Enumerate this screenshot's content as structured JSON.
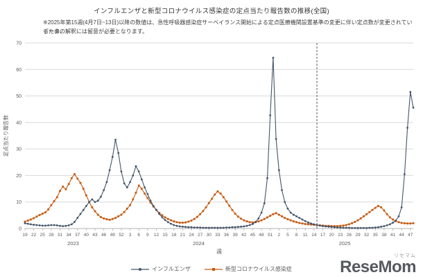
{
  "note": {
    "line1": "※2025年第15週(4月7日~13日)以降の数値は、急性呼吸器感染症サーベイランス開始による定点医療機関設置基準の変更に伴い定点数が変更されているため、",
    "line2": "データの解釈には留意が必要となります。"
  },
  "watermark": {
    "brand": "ReseMom",
    "kana": "リセマム"
  },
  "chart_data": {
    "type": "line",
    "title": "インフルエンザと新型コロナウイルス感染症の定点当たり報告数の推移(全国)",
    "ylabel": "定点当たり報告数",
    "xlabel": "週",
    "ylim": [
      0,
      70
    ],
    "y_ticks": [
      0,
      10,
      20,
      30,
      40,
      50,
      60,
      70
    ],
    "x_tick_every": 3,
    "grid": "horizontal",
    "legend_position": "bottom",
    "vline_index": 100,
    "vline_note": "2025年第15週",
    "categories": [
      19,
      20,
      21,
      22,
      23,
      24,
      25,
      26,
      27,
      28,
      29,
      30,
      31,
      32,
      33,
      34,
      35,
      36,
      37,
      38,
      39,
      40,
      41,
      42,
      43,
      44,
      45,
      46,
      47,
      48,
      49,
      50,
      51,
      52,
      1,
      2,
      3,
      4,
      5,
      6,
      7,
      8,
      9,
      10,
      11,
      12,
      13,
      14,
      15,
      16,
      17,
      18,
      19,
      20,
      21,
      22,
      23,
      24,
      25,
      26,
      27,
      28,
      29,
      30,
      31,
      32,
      33,
      34,
      35,
      36,
      37,
      38,
      39,
      40,
      41,
      42,
      43,
      44,
      45,
      46,
      47,
      48,
      49,
      50,
      51,
      52,
      1,
      2,
      3,
      4,
      5,
      6,
      7,
      8,
      9,
      10,
      11,
      12,
      13,
      14,
      15,
      16,
      17,
      18,
      19,
      20,
      21,
      22,
      23,
      24,
      25,
      26,
      27,
      28,
      29,
      30,
      31,
      32,
      33,
      34,
      35,
      36,
      37,
      38,
      39,
      40,
      41,
      42,
      43,
      44,
      45,
      46,
      47,
      48
    ],
    "year_groups": [
      {
        "label": "2023",
        "start": 0,
        "end": 33
      },
      {
        "label": "2024",
        "start": 34,
        "end": 85
      },
      {
        "label": "2025",
        "start": 86,
        "end": 133
      }
    ],
    "series": [
      {
        "name": "インフルエンザ",
        "color": "#44546A",
        "marker": "circle",
        "values": [
          2.0,
          1.8,
          1.6,
          1.4,
          1.3,
          1.2,
          1.1,
          1.1,
          1.2,
          1.3,
          1.3,
          1.2,
          1.0,
          0.9,
          1.0,
          1.2,
          1.6,
          2.5,
          4.0,
          5.5,
          7.0,
          8.5,
          10.0,
          11.0,
          10.0,
          10.5,
          12.0,
          14.5,
          17.5,
          22.0,
          27.0,
          33.5,
          28.5,
          21.5,
          17.0,
          15.5,
          17.5,
          20.0,
          23.5,
          21.5,
          18.5,
          15.5,
          13.0,
          10.5,
          8.5,
          7.0,
          5.5,
          4.2,
          3.2,
          2.4,
          1.8,
          1.3,
          1.0,
          0.8,
          0.7,
          0.6,
          0.5,
          0.5,
          0.4,
          0.4,
          0.4,
          0.3,
          0.3,
          0.3,
          0.3,
          0.3,
          0.3,
          0.3,
          0.3,
          0.4,
          0.4,
          0.5,
          0.5,
          0.6,
          0.7,
          0.8,
          1.0,
          1.3,
          1.7,
          2.5,
          3.8,
          6.0,
          9.5,
          19.0,
          42.7,
          64.4,
          33.8,
          22.0,
          14.5,
          10.0,
          7.5,
          6.0,
          5.2,
          4.6,
          4.0,
          3.4,
          2.8,
          2.3,
          1.9,
          1.6,
          1.3,
          1.1,
          0.9,
          0.8,
          0.7,
          0.6,
          0.5,
          0.4,
          0.4,
          0.3,
          0.3,
          0.3,
          0.2,
          0.2,
          0.2,
          0.2,
          0.2,
          0.2,
          0.3,
          0.3,
          0.4,
          0.5,
          0.7,
          0.9,
          1.2,
          1.6,
          2.2,
          3.0,
          4.6,
          8.0,
          20.5,
          38.0,
          51.5,
          45.6
        ]
      },
      {
        "name": "新型コロナウイルス感染症",
        "color": "#C55A11",
        "marker": "square",
        "values": [
          2.6,
          3.0,
          3.4,
          3.9,
          4.5,
          5.1,
          5.6,
          6.1,
          7.2,
          8.8,
          10.3,
          11.8,
          14.2,
          15.8,
          14.8,
          16.8,
          19.0,
          20.5,
          18.8,
          17.2,
          15.0,
          12.5,
          10.0,
          8.0,
          6.5,
          5.2,
          4.3,
          3.8,
          3.5,
          3.3,
          3.6,
          4.0,
          4.6,
          5.2,
          6.2,
          7.5,
          8.8,
          11.0,
          13.5,
          16.2,
          15.0,
          13.2,
          11.5,
          9.8,
          8.3,
          7.0,
          5.9,
          5.0,
          4.2,
          3.6,
          3.1,
          2.7,
          2.4,
          2.2,
          2.2,
          2.3,
          2.6,
          3.0,
          3.6,
          4.4,
          5.4,
          6.6,
          8.0,
          9.6,
          11.2,
          12.8,
          14.0,
          13.2,
          11.8,
          10.2,
          8.6,
          7.0,
          5.6,
          4.5,
          3.7,
          3.1,
          2.7,
          2.4,
          2.3,
          2.4,
          2.7,
          3.1,
          3.6,
          4.2,
          4.8,
          5.4,
          5.8,
          5.2,
          4.6,
          4.0,
          3.5,
          3.1,
          2.7,
          2.4,
          2.1,
          1.9,
          1.7,
          1.6,
          1.5,
          1.4,
          1.3,
          1.2,
          1.1,
          1.0,
          1.0,
          0.9,
          0.9,
          0.9,
          1.0,
          1.1,
          1.3,
          1.6,
          2.0,
          2.5,
          3.1,
          3.8,
          4.6,
          5.4,
          6.2,
          7.0,
          7.8,
          8.5,
          8.0,
          6.8,
          5.4,
          4.2,
          3.4,
          2.8,
          2.4,
          2.1,
          2.0,
          1.9,
          1.9,
          2.0
        ]
      }
    ]
  }
}
